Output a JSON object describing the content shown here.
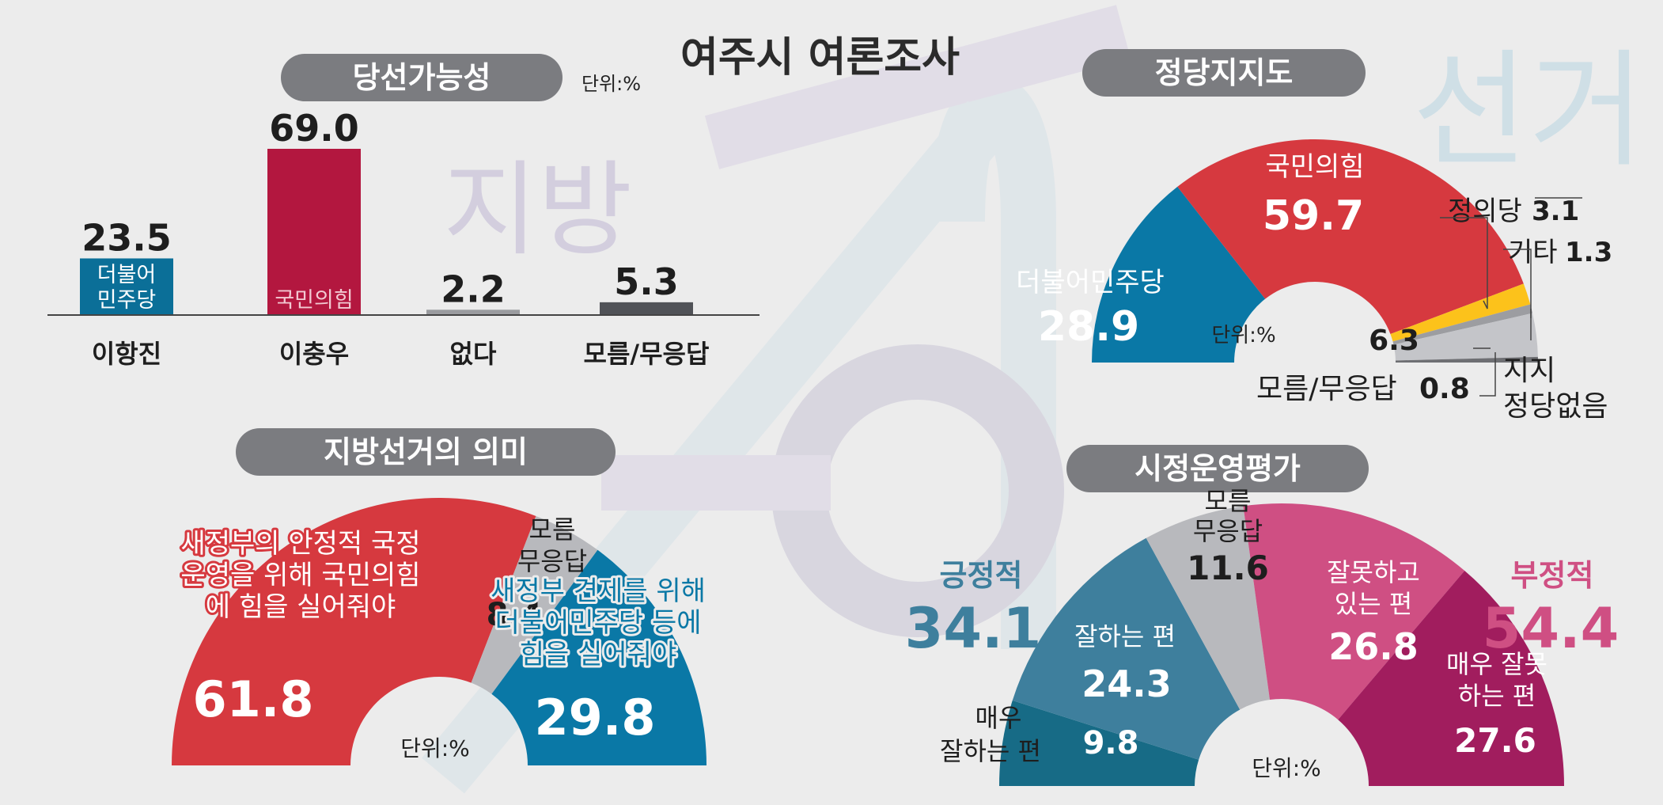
{
  "title": "여주시 여론조사",
  "unit": "단위:%",
  "watermark": {
    "left": "지방",
    "right": "선거",
    "year_colors": [
      "#c9c5d6",
      "#d6e2e8",
      "#d9d2e3"
    ]
  },
  "colors": {
    "red": "#d6393f",
    "blue": "#0a78a6",
    "gray": "#b8b9bd",
    "yellow": "#fcc21b",
    "pink": "#cf4f83",
    "magenta": "#a11d5e",
    "teal": "#3e7f9d",
    "dark_teal": "#176b86"
  },
  "chart_data": [
    {
      "type": "bar",
      "title": "당선가능성",
      "unit": "단위:%",
      "categories": [
        "이항진",
        "이충우",
        "없다",
        "모름/무응답"
      ],
      "values": [
        23.5,
        69.0,
        2.2,
        5.3
      ],
      "value_labels": [
        "23.5",
        "69.0",
        "2.2",
        "5.3"
      ],
      "bar_labels": [
        [
          "더불어",
          "민주당"
        ],
        [
          "국민의힘"
        ],
        [],
        []
      ],
      "colors": [
        "#0b6f98",
        "#b3173f",
        "#9a9b9f",
        "#505257"
      ],
      "ylim": [
        0,
        69.0
      ]
    },
    {
      "type": "pie",
      "title": "정당지지도",
      "unit": "단위:%",
      "slices": [
        {
          "name": "더불어민주당",
          "value": 28.9,
          "label": "28.9",
          "color": "#0a78a6"
        },
        {
          "name": "국민의힘",
          "value": 59.7,
          "label": "59.7",
          "color": "#d6393f"
        },
        {
          "name": "정의당",
          "value": 3.1,
          "label": "3.1",
          "color": "#fcc21b"
        },
        {
          "name": "기타",
          "value": 1.3,
          "label": "1.3",
          "color": "#9c9da1"
        },
        {
          "name": "지지정당없음",
          "value": 6.3,
          "label": "6.3",
          "color": "#c4c5c9"
        },
        {
          "name": "모름/무응답",
          "value": 0.8,
          "label": "0.8",
          "color": "#6e6f73"
        }
      ],
      "labels": {
        "other_line1": "지지",
        "other_line2": "정당없음"
      }
    },
    {
      "type": "pie",
      "title": "지방선거의 의미",
      "unit": "단위:%",
      "slices": [
        {
          "name": "새정부의 안정적 국정 운영을 위해 국민의힘에 힘을 실어줘야",
          "value": 61.8,
          "label": "61.8",
          "color": "#d6393f"
        },
        {
          "name": "모름 무응답",
          "value": 8.4,
          "label": "8.4",
          "color": "#b8b9bd"
        },
        {
          "name": "새정부 견제를 위해 더불어민주당 등에 힘을 실어줘야",
          "value": 29.8,
          "label": "29.8",
          "color": "#0a78a6"
        }
      ],
      "labels": {
        "red_lines": [
          "새정부의 안정적 국정",
          "운영을 위해 국민의힘",
          "에 힘을 실어줘야"
        ],
        "gray_lines": [
          "모름",
          "무응답"
        ],
        "blue_lines": [
          "새정부 견제를 위해",
          "더불어민주당 등에",
          "힘을 실어줘야"
        ]
      }
    },
    {
      "type": "pie",
      "title": "시정운영평가",
      "unit": "단위:%",
      "slices": [
        {
          "name": "매우 잘하는 편",
          "value": 9.8,
          "label": "9.8",
          "color": "#176b86"
        },
        {
          "name": "잘하는 편",
          "value": 24.3,
          "label": "24.3",
          "color": "#3e7f9d"
        },
        {
          "name": "모름 무응답",
          "value": 11.6,
          "label": "11.6",
          "color": "#b8b9bd"
        },
        {
          "name": "잘못하고 있는 편",
          "value": 26.8,
          "label": "26.8",
          "color": "#cf4f83"
        },
        {
          "name": "매우 잘못하는 편",
          "value": 27.6,
          "label": "27.6",
          "color": "#a11d5e"
        }
      ],
      "labels": {
        "positive": "긍정적",
        "positive_value": "34.1",
        "negative": "부정적",
        "negative_value": "54.4",
        "very_good_lines": [
          "매우",
          "잘하는 편"
        ],
        "good": "잘하는 편",
        "unknown_lines": [
          "모름",
          "무응답"
        ],
        "bad_lines": [
          "잘못하고",
          "있는 편"
        ],
        "very_bad_lines": [
          "매우 잘못",
          "하는 편"
        ]
      }
    }
  ]
}
